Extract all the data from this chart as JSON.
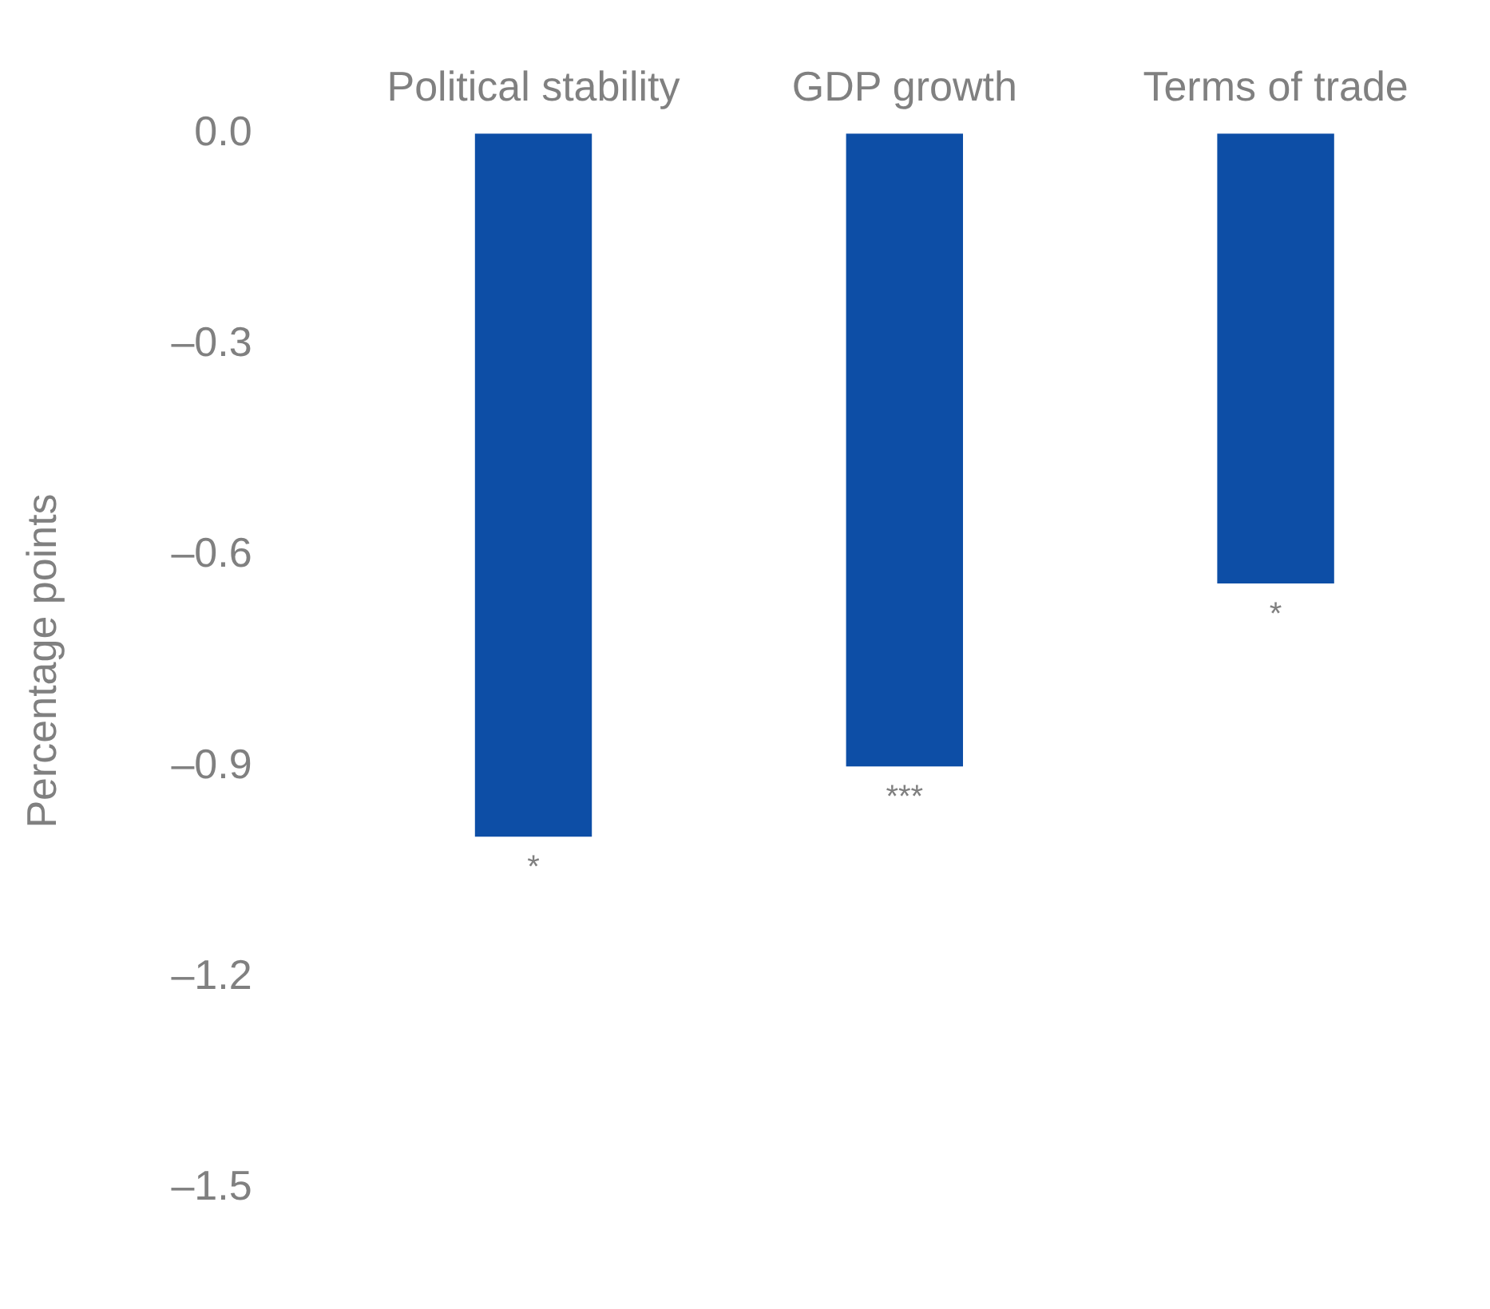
{
  "chart_data": {
    "type": "bar",
    "categories": [
      "Political stability",
      "GDP growth",
      "Terms of trade"
    ],
    "values": [
      -1.0,
      -0.9,
      -0.64
    ],
    "color": "#0d4ea6",
    "ylabel": "Percentage points",
    "ylim": [
      -1.5,
      0
    ],
    "yticks": [
      {
        "value": 0,
        "label": "0.0"
      },
      {
        "value": -0.3,
        "label": "–0.3"
      },
      {
        "value": -0.6,
        "label": "–0.6"
      },
      {
        "value": -0.9,
        "label": "–0.9"
      },
      {
        "value": -1.2,
        "label": "–1.2"
      },
      {
        "value": -1.5,
        "label": "–1.5"
      }
    ],
    "grid": false,
    "legend": false,
    "annotations": [
      {
        "text": "*",
        "x": "Political stability",
        "y": -1.0
      },
      {
        "text": "***",
        "x": "GDP growth",
        "y": -0.9
      },
      {
        "text": "*",
        "x": "Terms of trade",
        "y": -0.64
      }
    ]
  }
}
